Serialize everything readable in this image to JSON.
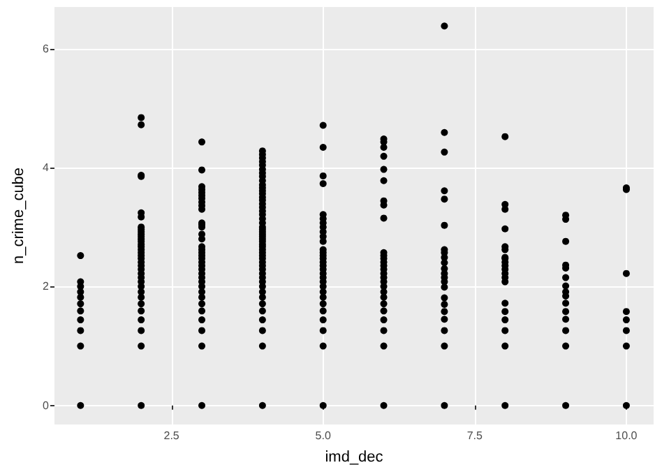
{
  "chart_data": {
    "type": "scatter",
    "xlabel": "imd_dec",
    "ylabel": "n_crime_cube",
    "marker": "circle",
    "grid": true,
    "xlim": [
      0.57,
      10.45
    ],
    "xticks": [
      {
        "value": 2.5,
        "label": "2.5"
      },
      {
        "value": 5,
        "label": "5.0"
      },
      {
        "value": 7.5,
        "label": "7.5"
      },
      {
        "value": 10,
        "label": "10.0"
      }
    ],
    "ylim": [
      -0.32,
      6.7
    ],
    "yticks": [
      0,
      2,
      4,
      6
    ],
    "series": [
      {
        "color": "#000000",
        "x": [
          1,
          1,
          1,
          1,
          1,
          1,
          1,
          1,
          1,
          1,
          1,
          2,
          2,
          2,
          2,
          2,
          2,
          2,
          2,
          2,
          2,
          2,
          2,
          2,
          2,
          2,
          2,
          2,
          2,
          2,
          2,
          2,
          2,
          2,
          2,
          2,
          2,
          2,
          2,
          2,
          2,
          2,
          2,
          2,
          2,
          3,
          3,
          3,
          3,
          3,
          3,
          3,
          3,
          3,
          3,
          3,
          3,
          3,
          3,
          3,
          3,
          3,
          3,
          3,
          3,
          3,
          3,
          3,
          3,
          3,
          3,
          3,
          3,
          3,
          3,
          3,
          3,
          3,
          3,
          3,
          4,
          4,
          4,
          4,
          4,
          4,
          4,
          4,
          4,
          4,
          4,
          4,
          4,
          4,
          4,
          4,
          4,
          4,
          4,
          4,
          4,
          4,
          4,
          4,
          4,
          4,
          4,
          4,
          4,
          4,
          4,
          4,
          4,
          4,
          4,
          4,
          4,
          4,
          4,
          4,
          4,
          4,
          4,
          4,
          4,
          4,
          4,
          4,
          4,
          5,
          5,
          5,
          5,
          5,
          5,
          5,
          5,
          5,
          5,
          5,
          5,
          5,
          5,
          5,
          5,
          5,
          5,
          5,
          5,
          5,
          5,
          5,
          5,
          5,
          5,
          5,
          5,
          5,
          5,
          6,
          6,
          6,
          6,
          6,
          6,
          6,
          6,
          6,
          6,
          6,
          6,
          6,
          6,
          6,
          6,
          6,
          6,
          6,
          6,
          6,
          6,
          6,
          6,
          6,
          6,
          6,
          7,
          7,
          7,
          7,
          7,
          7,
          7,
          7,
          7,
          7,
          7,
          7,
          7,
          7,
          7,
          7,
          7,
          7,
          7,
          7,
          7,
          7,
          8,
          8,
          8,
          8,
          8,
          8,
          8,
          8,
          8,
          8,
          8,
          8,
          8,
          8,
          8,
          8,
          8,
          8,
          8,
          8,
          9,
          9,
          9,
          9,
          9,
          9,
          9,
          9,
          9,
          9,
          9,
          9,
          9,
          9,
          9,
          10,
          10,
          10,
          10,
          10,
          10,
          10,
          10
        ],
        "values": [
          2.52,
          2.08,
          2.0,
          1.91,
          1.82,
          1.71,
          1.59,
          1.44,
          1.26,
          1,
          0,
          4.84,
          4.72,
          3.87,
          3.85,
          3.24,
          3.17,
          3.0,
          2.96,
          2.92,
          2.88,
          2.84,
          2.8,
          2.76,
          2.71,
          2.67,
          2.62,
          2.57,
          2.52,
          2.47,
          2.41,
          2.35,
          2.29,
          2.22,
          2.15,
          2.08,
          2.0,
          1.91,
          1.82,
          1.71,
          1.59,
          1.44,
          1.26,
          1,
          0,
          4.43,
          3.96,
          3.68,
          3.63,
          3.58,
          3.53,
          3.48,
          3.42,
          3.36,
          3.3,
          3.07,
          3.04,
          3.0,
          2.88,
          2.8,
          2.67,
          2.62,
          2.57,
          2.52,
          2.47,
          2.41,
          2.35,
          2.29,
          2.22,
          2.15,
          2.08,
          2.0,
          1.91,
          1.82,
          1.71,
          1.59,
          1.44,
          1.26,
          1,
          0,
          4.28,
          4.22,
          4.16,
          4.1,
          4.04,
          3.97,
          3.91,
          3.85,
          3.78,
          3.71,
          3.66,
          3.61,
          3.56,
          3.5,
          3.45,
          3.39,
          3.33,
          3.27,
          3.21,
          3.14,
          3.07,
          3.0,
          2.96,
          2.92,
          2.88,
          2.84,
          2.8,
          2.76,
          2.71,
          2.67,
          2.62,
          2.57,
          2.52,
          2.47,
          2.41,
          2.35,
          2.29,
          2.22,
          2.15,
          2.08,
          2.0,
          1.91,
          1.82,
          1.71,
          1.59,
          1.44,
          1.26,
          1,
          0,
          4.71,
          4.34,
          3.86,
          3.73,
          3.21,
          3.14,
          3.07,
          3.0,
          2.92,
          2.84,
          2.76,
          2.62,
          2.57,
          2.52,
          2.47,
          2.41,
          2.35,
          2.29,
          2.22,
          2.15,
          2.08,
          2.0,
          1.91,
          1.82,
          1.71,
          1.59,
          1.44,
          1.26,
          1,
          0,
          4.48,
          4.43,
          4.34,
          4.19,
          3.97,
          3.78,
          3.44,
          3.37,
          3.15,
          2.57,
          2.52,
          2.47,
          2.41,
          2.35,
          2.29,
          2.22,
          2.15,
          2.08,
          2.0,
          1.91,
          1.82,
          1.71,
          1.59,
          1.44,
          1.26,
          1,
          0,
          6.38,
          4.59,
          4.26,
          3.61,
          3.47,
          3.03,
          2.62,
          2.57,
          2.49,
          2.4,
          2.3,
          2.22,
          2.15,
          2.08,
          1.99,
          1.81,
          1.7,
          1.58,
          1.45,
          1.26,
          1,
          0,
          4.52,
          3.38,
          3.3,
          2.97,
          2.67,
          2.62,
          2.49,
          2.47,
          2.41,
          2.35,
          2.29,
          2.22,
          2.15,
          2.08,
          1.72,
          1.58,
          1.44,
          1.26,
          1,
          0,
          3.2,
          3.13,
          2.76,
          2.36,
          2.31,
          2.15,
          2.01,
          1.91,
          1.84,
          1.72,
          1.58,
          1.45,
          1.26,
          1,
          0,
          3.66,
          3.63,
          2.22,
          1.58,
          1.44,
          1.26,
          1,
          0
        ]
      }
    ]
  }
}
